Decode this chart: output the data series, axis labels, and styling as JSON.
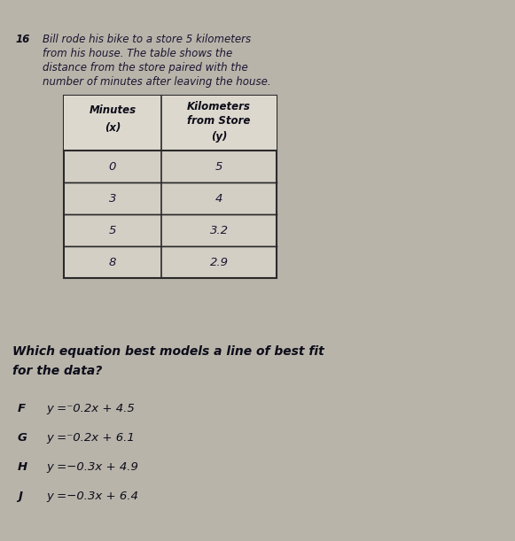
{
  "background_color": "#b8b4aa",
  "question_number": "16",
  "question_lines": [
    "Bill rode his bike to a store 5 kilometers",
    "from his house. The table shows the",
    "distance from the store paired with the",
    "number of minutes after leaving the house."
  ],
  "table_data": [
    [
      "0",
      "5"
    ],
    [
      "3",
      "4"
    ],
    [
      "5",
      "3.2"
    ],
    [
      "8",
      "2.9"
    ]
  ],
  "subquestion_lines": [
    "Which equation best models a line of best fit",
    "for the data?"
  ],
  "option_letters": [
    "F",
    "G",
    "H",
    "J"
  ],
  "option_equations": [
    "y =⁻0.2x + 4.5",
    "y =⁻0.2x + 6.1",
    "y =−0.3x + 4.9",
    "y =−0.3x + 6.4"
  ],
  "text_color": "#1a1530",
  "bold_color": "#0d0d1a",
  "table_bg": "#d4cfc5",
  "table_border": "#2a2a2a",
  "font_size_question": 8.5,
  "font_size_table": 8.5,
  "font_size_subq": 10.0,
  "font_size_options": 9.5
}
